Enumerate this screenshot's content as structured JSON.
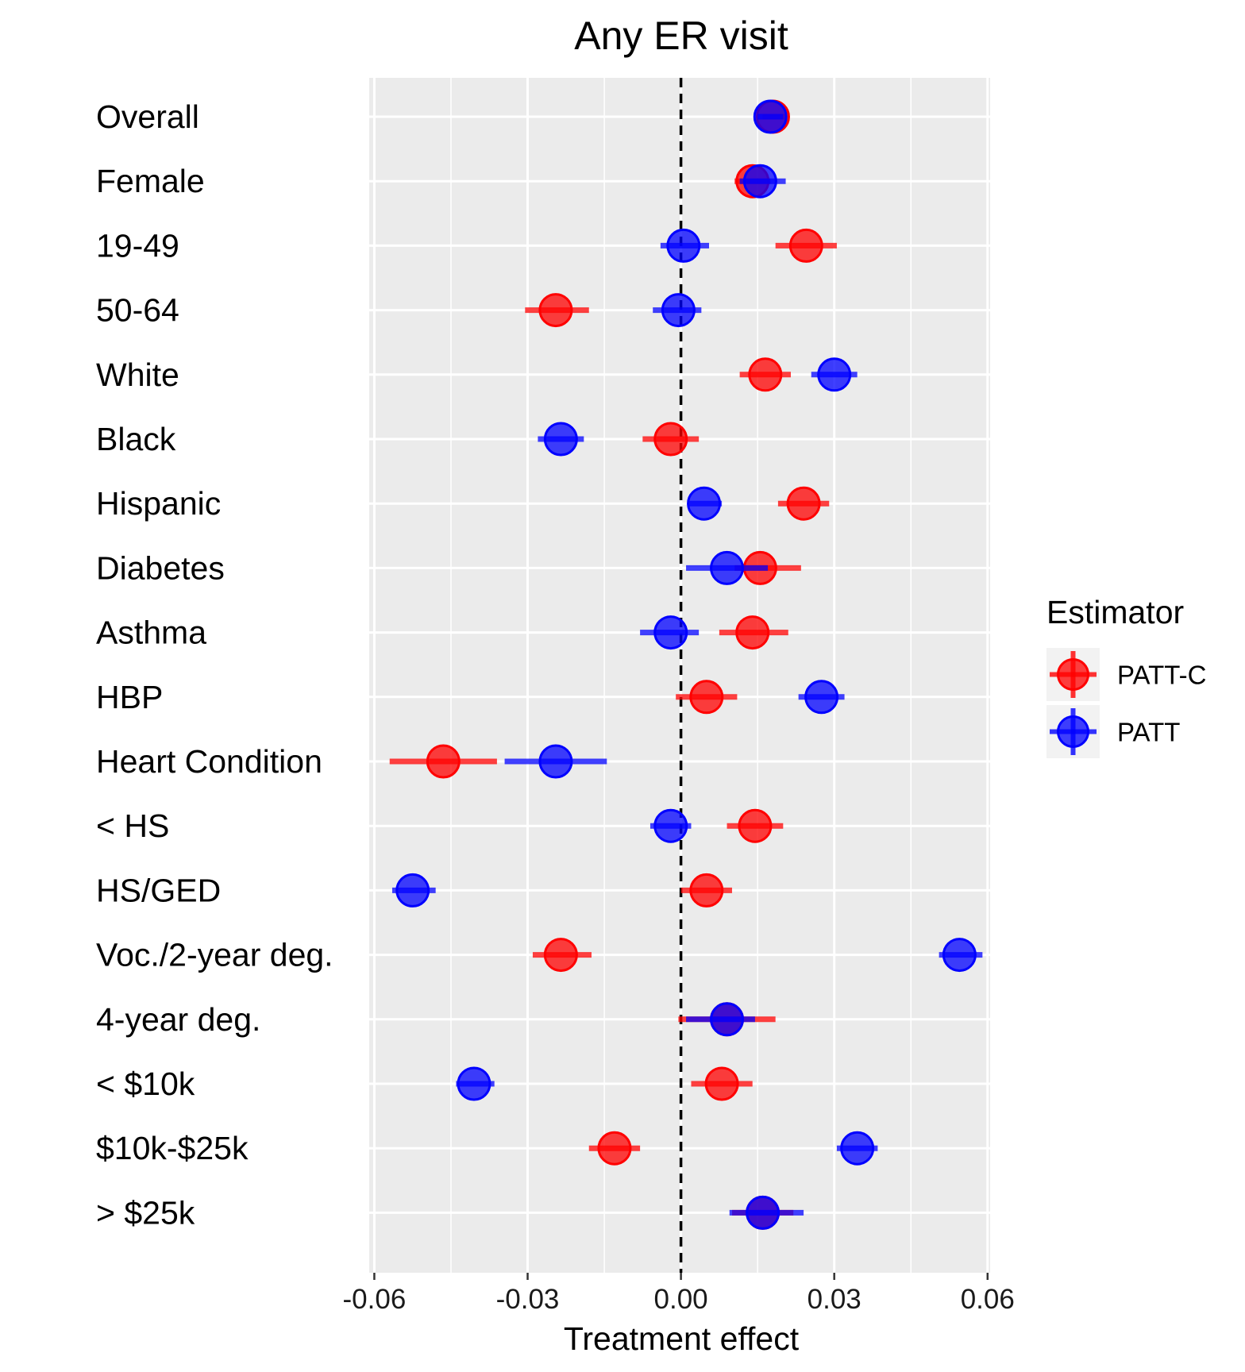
{
  "chart_data": {
    "type": "scatter",
    "subtype": "dot-and-whisker",
    "title": "Any ER visit",
    "xlabel": "Treatment effect",
    "ylabel": "",
    "xlim": [
      -0.061,
      0.0605
    ],
    "x_ticks": [
      -0.06,
      -0.03,
      0.0,
      0.03,
      0.06
    ],
    "x_tick_labels": [
      "-0.06",
      "-0.03",
      "0.00",
      "0.03",
      "0.06"
    ],
    "reference_line": {
      "x": 0,
      "style": "dashed",
      "color": "#000000"
    },
    "grid": true,
    "panel_background": "#ebebeb",
    "categories": [
      "Overall",
      "Female",
      "19-49",
      "50-64",
      "White",
      "Black",
      "Hispanic",
      "Diabetes",
      "Asthma",
      "HBP",
      "Heart Condition",
      "< HS",
      "HS/GED",
      "Voc./2-year deg.",
      "4-year deg.",
      "< $10k",
      "$10k-$25k",
      "> $25k"
    ],
    "legend": {
      "title": "Estimator",
      "position": "right"
    },
    "series": [
      {
        "name": "PATT-C",
        "color": "#ff0000",
        "estimates": [
          0.018,
          0.014,
          0.0245,
          -0.0245,
          0.0165,
          -0.002,
          0.024,
          0.0155,
          0.014,
          0.005,
          -0.0465,
          0.0145,
          0.005,
          -0.0235,
          0.009,
          0.008,
          -0.013,
          0.016
        ],
        "ci_low": [
          0.016,
          0.0105,
          0.0185,
          -0.0305,
          0.0115,
          -0.0075,
          0.019,
          0.0105,
          0.0075,
          -0.001,
          -0.057,
          0.009,
          0.0,
          -0.029,
          -0.0005,
          0.002,
          -0.018,
          0.01
        ],
        "ci_high": [
          0.0205,
          0.0175,
          0.0305,
          -0.018,
          0.0215,
          0.0035,
          0.029,
          0.0235,
          0.021,
          0.011,
          -0.036,
          0.02,
          0.01,
          -0.0175,
          0.0185,
          0.014,
          -0.008,
          0.022
        ]
      },
      {
        "name": "PATT",
        "color": "#0000ff",
        "estimates": [
          0.0175,
          0.0155,
          0.0005,
          -0.0005,
          0.03,
          -0.0235,
          0.0045,
          0.009,
          -0.002,
          0.0275,
          -0.0245,
          -0.002,
          -0.0525,
          0.0545,
          0.009,
          -0.0405,
          0.0345,
          0.016
        ],
        "ci_low": [
          0.015,
          0.0115,
          -0.004,
          -0.0055,
          0.0255,
          -0.028,
          0.0015,
          0.001,
          -0.008,
          0.023,
          -0.0345,
          -0.006,
          -0.0565,
          0.0505,
          0.001,
          -0.044,
          0.0305,
          0.0095
        ],
        "ci_high": [
          0.02,
          0.0205,
          0.0055,
          0.004,
          0.0345,
          -0.019,
          0.008,
          0.017,
          0.0035,
          0.032,
          -0.0145,
          0.002,
          -0.048,
          0.059,
          0.0145,
          -0.0365,
          0.0385,
          0.024
        ]
      }
    ]
  }
}
